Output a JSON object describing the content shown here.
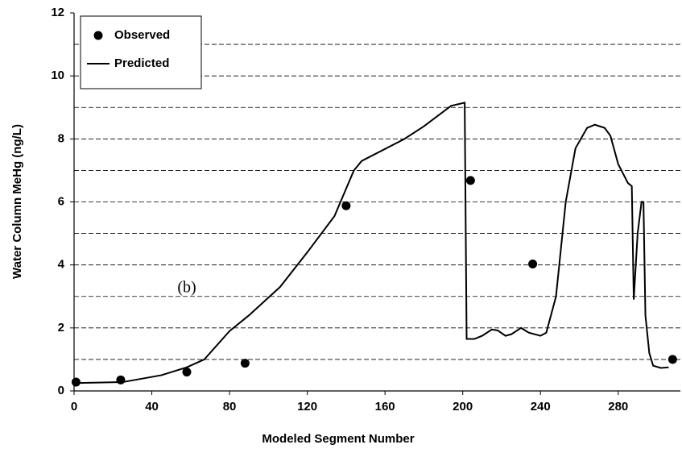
{
  "chart_data": {
    "type": "scatter-line",
    "x_label": "Modeled Segment Number",
    "y_label": "Water Column MeHg (ng/L)",
    "annotation": {
      "text": "(b)",
      "x": 58,
      "y": 3.25
    },
    "xlim": [
      0,
      312
    ],
    "xticks": [
      0,
      40,
      80,
      120,
      160,
      200,
      240,
      280
    ],
    "ylim": [
      0,
      12
    ],
    "yticks": [
      0,
      2,
      4,
      6,
      8,
      10,
      12
    ],
    "ygrid": [
      1,
      2,
      3,
      4,
      5,
      6,
      7,
      8,
      9,
      10,
      11
    ],
    "legend": "top-left",
    "series": [
      {
        "name": "Observed",
        "kind": "points",
        "color": "#000000",
        "x": [
          1,
          24,
          58,
          88,
          140,
          204,
          236,
          308
        ],
        "values": [
          0.28,
          0.35,
          0.6,
          0.88,
          5.88,
          6.68,
          4.03,
          1.0
        ]
      },
      {
        "name": "Predicted",
        "kind": "line",
        "color": "#000000",
        "x": [
          0,
          25,
          45,
          58,
          67,
          80,
          90,
          106,
          120,
          134,
          144,
          148,
          170,
          180,
          194,
          201,
          202,
          206,
          210,
          215,
          218,
          222,
          225,
          230,
          234,
          240,
          243,
          248,
          253,
          258,
          264,
          268,
          273,
          276,
          280,
          285,
          287,
          288,
          290,
          292,
          293,
          294,
          296,
          298,
          302,
          306
        ],
        "values": [
          0.25,
          0.28,
          0.5,
          0.75,
          1.0,
          1.9,
          2.4,
          3.3,
          4.4,
          5.55,
          7.0,
          7.3,
          8.0,
          8.4,
          9.05,
          9.15,
          1.65,
          1.65,
          1.75,
          1.95,
          1.92,
          1.75,
          1.8,
          2.0,
          1.85,
          1.75,
          1.85,
          3.0,
          6.0,
          7.7,
          8.35,
          8.45,
          8.35,
          8.1,
          7.2,
          6.6,
          6.5,
          2.9,
          5.0,
          6.0,
          6.0,
          2.4,
          1.2,
          0.8,
          0.73,
          0.75
        ]
      }
    ]
  }
}
